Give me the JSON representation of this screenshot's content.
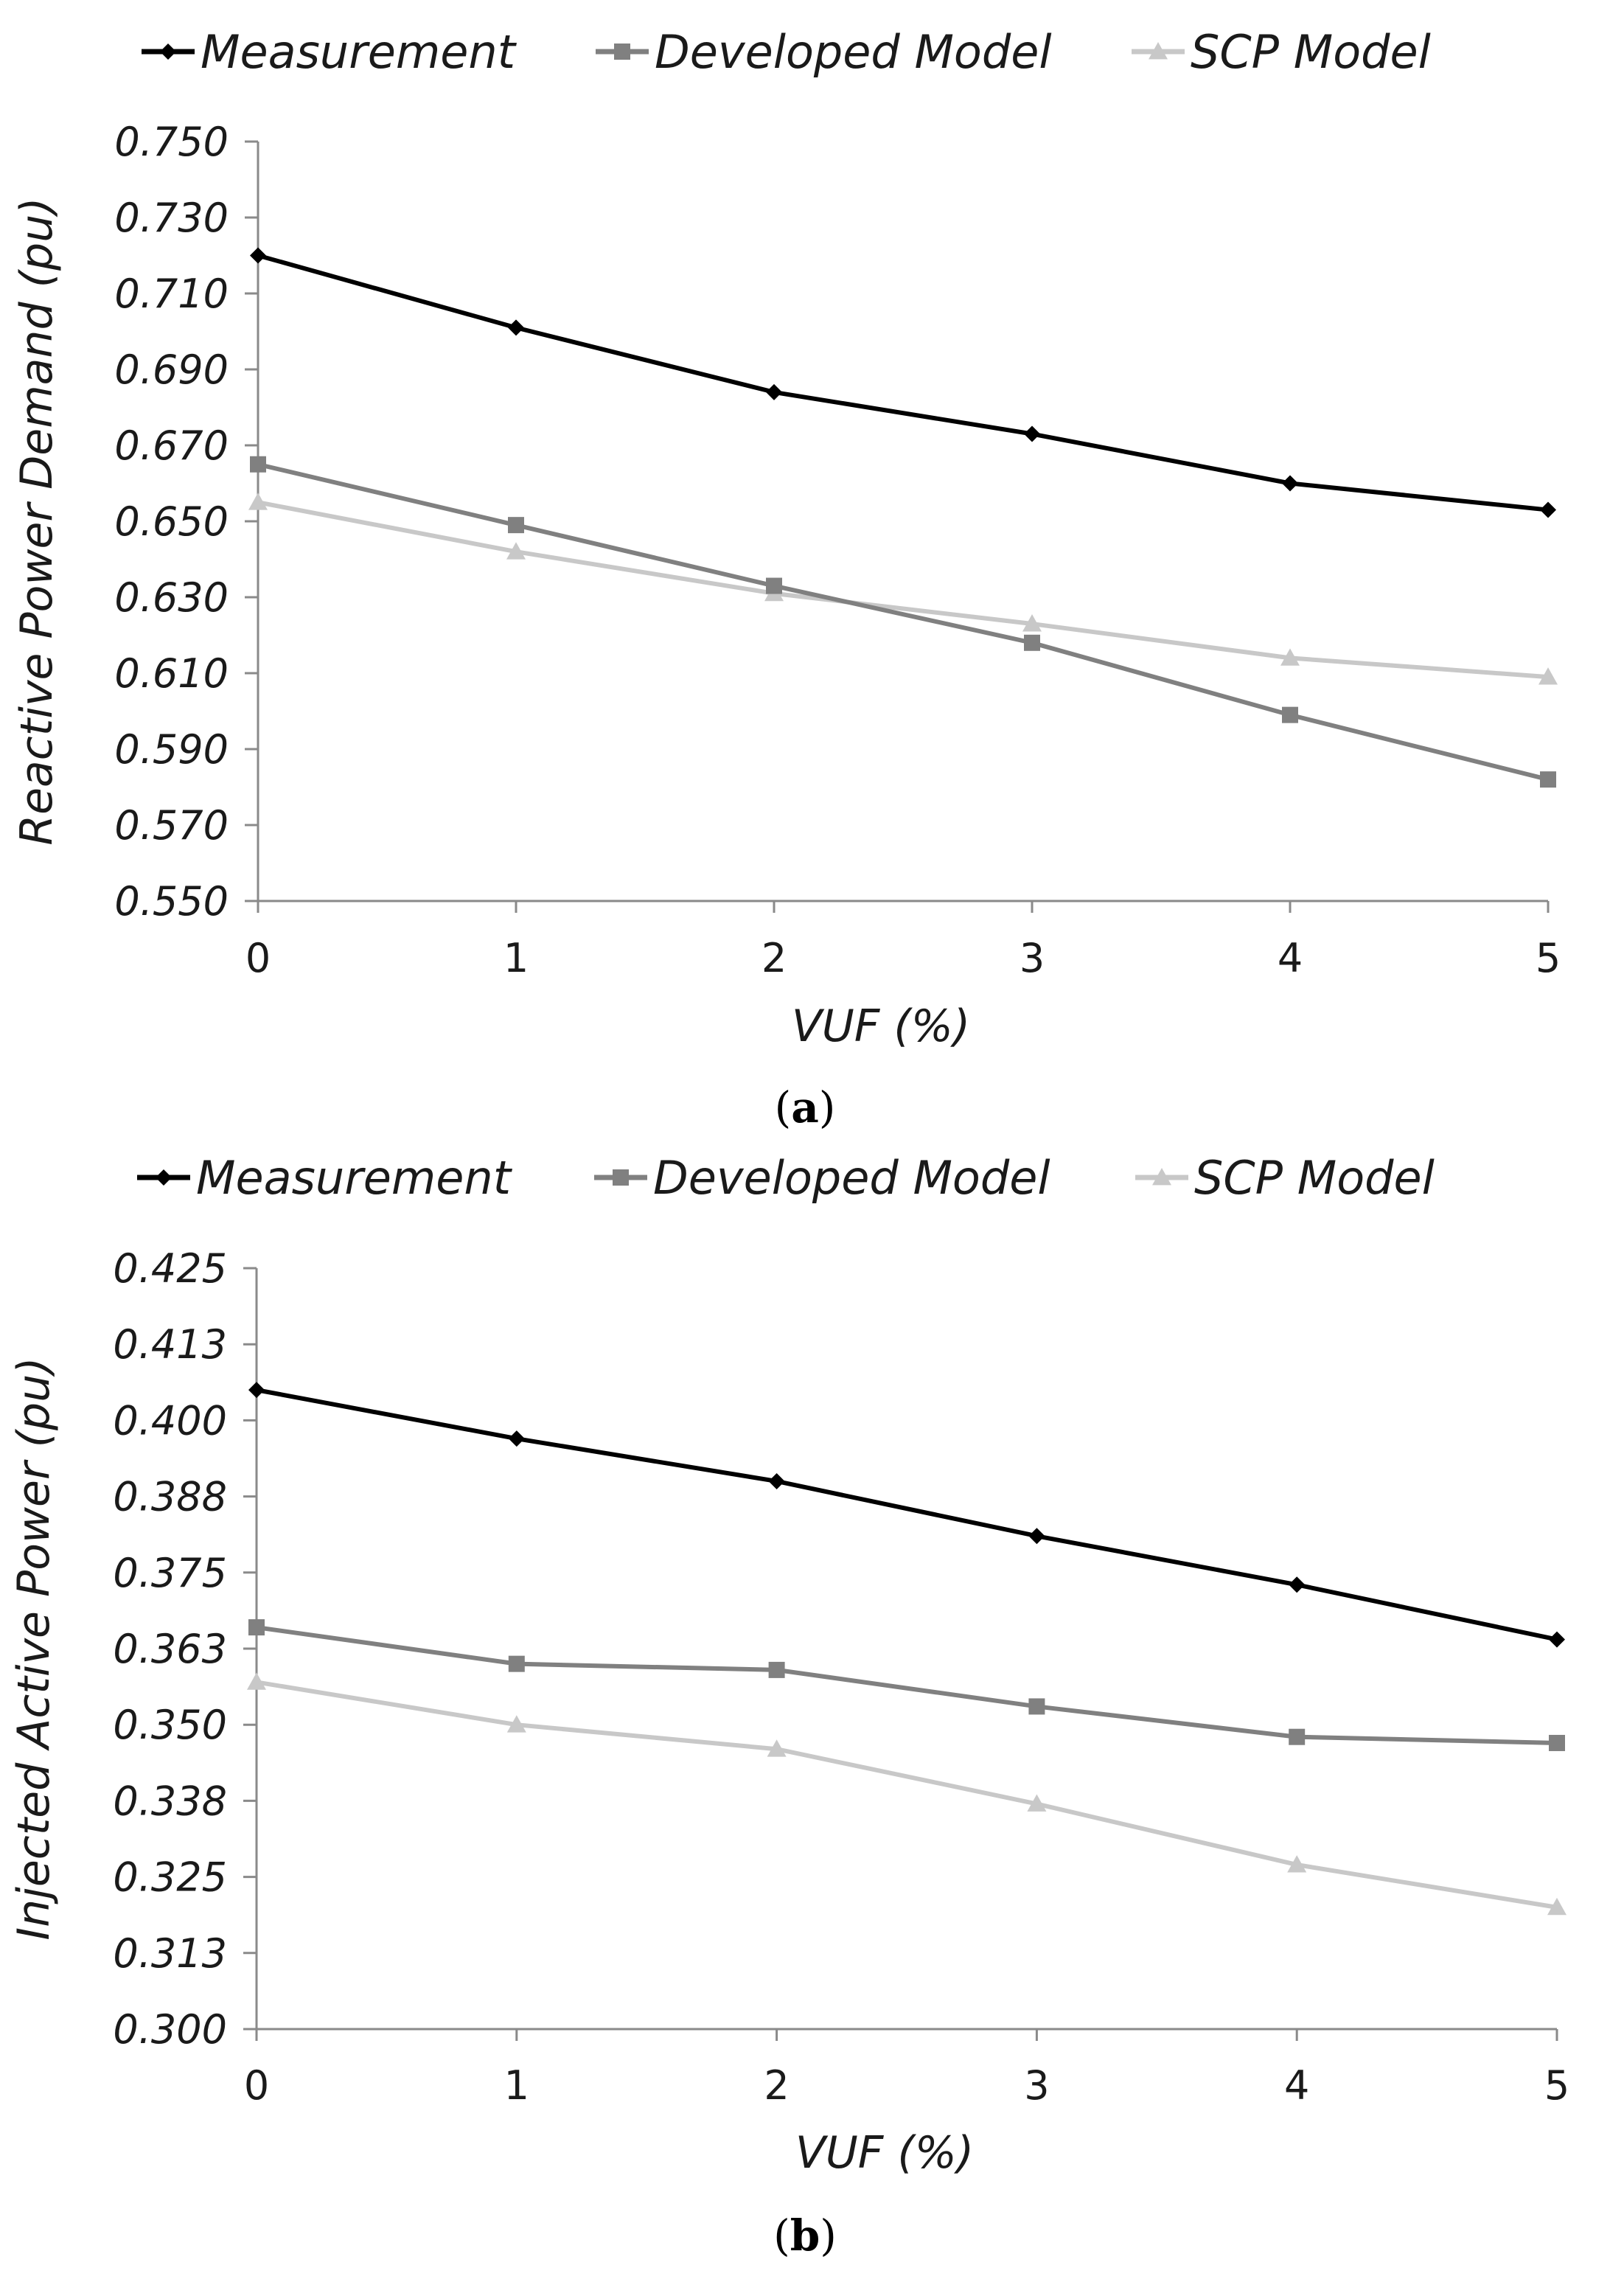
{
  "chart_data": [
    {
      "type": "line",
      "panel": "a",
      "caption_letter": "a",
      "title": "",
      "xlabel": "VUF (%)",
      "ylabel": "Reactive Power Demand (pu)",
      "ylim": [
        0.55,
        0.75
      ],
      "yticks": [
        "0.550",
        "0.570",
        "0.590",
        "0.610",
        "0.630",
        "0.650",
        "0.670",
        "0.690",
        "0.710",
        "0.730",
        "0.750"
      ],
      "categories": [
        "0",
        "1",
        "2",
        "3",
        "4",
        "5"
      ],
      "legend_position": "top",
      "grid": false,
      "series": [
        {
          "name": "Measurement",
          "color": "#000000",
          "marker": "diamond",
          "values": [
            0.72,
            0.701,
            0.684,
            0.673,
            0.66,
            0.653
          ]
        },
        {
          "name": "Developed Model",
          "color": "#808080",
          "marker": "square",
          "values": [
            0.665,
            0.649,
            0.633,
            0.618,
            0.599,
            0.582
          ]
        },
        {
          "name": "SCP Model",
          "color": "#c8c8c8",
          "marker": "triangle",
          "values": [
            0.655,
            0.642,
            0.631,
            0.623,
            0.614,
            0.609
          ]
        }
      ]
    },
    {
      "type": "line",
      "panel": "b",
      "caption_letter": "b",
      "title": "",
      "xlabel": "VUF (%)",
      "ylabel": "Injected Active Power (pu)",
      "ylim": [
        0.3,
        0.425
      ],
      "yticks": [
        "0.300",
        "0.313",
        "0.325",
        "0.338",
        "0.350",
        "0.363",
        "0.375",
        "0.388",
        "0.400",
        "0.413",
        "0.425"
      ],
      "categories": [
        "0",
        "1",
        "2",
        "3",
        "4",
        "5"
      ],
      "legend_position": "top",
      "grid": false,
      "series": [
        {
          "name": "Measurement",
          "color": "#000000",
          "marker": "diamond",
          "values": [
            0.405,
            0.397,
            0.39,
            0.381,
            0.373,
            0.364
          ]
        },
        {
          "name": "Developed Model",
          "color": "#808080",
          "marker": "square",
          "values": [
            0.366,
            0.36,
            0.359,
            0.353,
            0.348,
            0.347
          ]
        },
        {
          "name": "SCP Model",
          "color": "#c8c8c8",
          "marker": "triangle",
          "values": [
            0.357,
            0.35,
            0.346,
            0.337,
            0.327,
            0.32
          ]
        }
      ]
    }
  ]
}
